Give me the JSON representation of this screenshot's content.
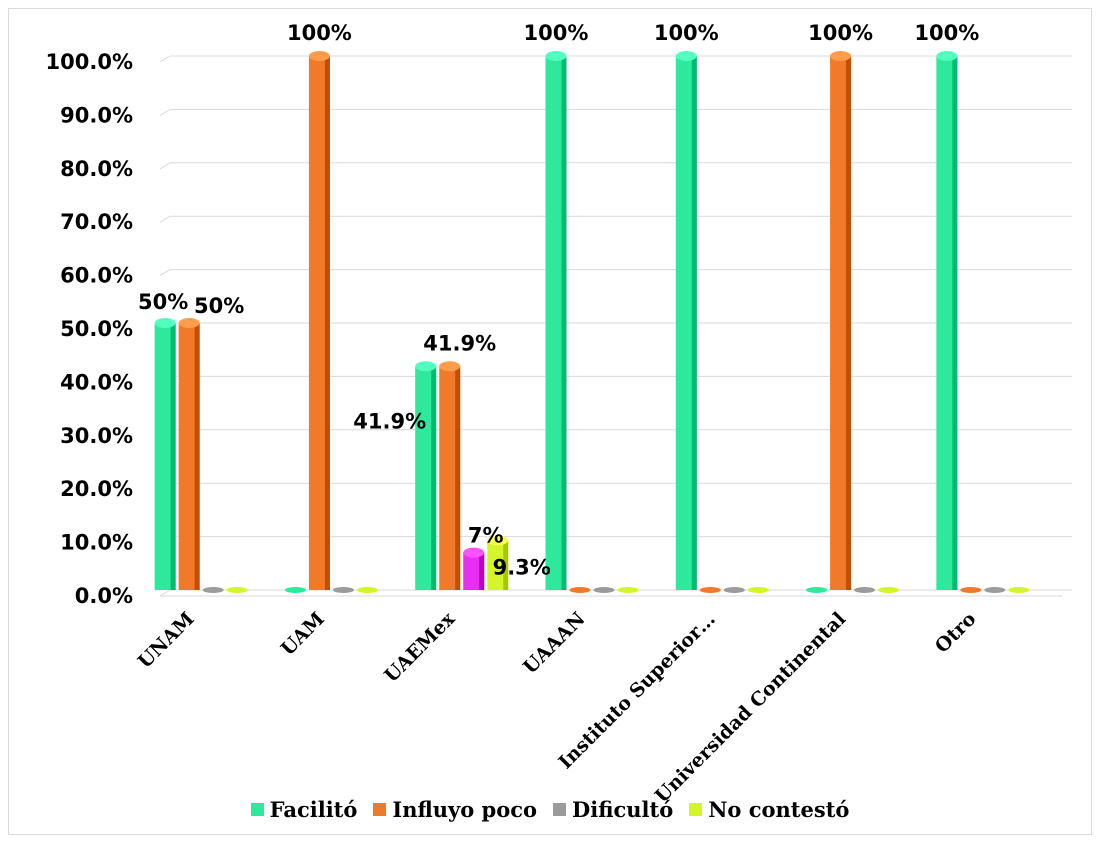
{
  "chart_data": {
    "type": "bar",
    "categories": [
      "UNAM",
      "UAM",
      "UAEMex",
      "UAAAN",
      "Instituto Superior…",
      "Universidad Continental",
      "Otro"
    ],
    "series": [
      {
        "name": "Facilitó",
        "color": "#2ee89b",
        "values": [
          50,
          0,
          41.9,
          100,
          100,
          0,
          100
        ]
      },
      {
        "name": "Influyo poco",
        "color": "#f07a2a",
        "values": [
          50,
          100,
          41.9,
          0,
          0,
          100,
          0
        ]
      },
      {
        "name": "Dificultó",
        "color": "#9b9b9b",
        "values": [
          0,
          0,
          7,
          0,
          0,
          0,
          0
        ]
      },
      {
        "name": "No contestó",
        "color": "#d4f52a",
        "values": [
          0,
          0,
          9.3,
          0,
          0,
          0,
          0
        ]
      }
    ],
    "bar_colors_override": {
      "2": {
        "2": "#e82ef0"
      }
    },
    "data_labels": [
      {
        "category": 0,
        "series": 0,
        "text": "50%"
      },
      {
        "category": 0,
        "series": 1,
        "text": "50%"
      },
      {
        "category": 1,
        "series": 1,
        "text": "100%"
      },
      {
        "category": 2,
        "series": 0,
        "text": "41.9%"
      },
      {
        "category": 2,
        "series": 1,
        "text": "41.9%"
      },
      {
        "category": 2,
        "series": 2,
        "text": "7%"
      },
      {
        "category": 2,
        "series": 3,
        "text": "9.3%"
      },
      {
        "category": 3,
        "series": 0,
        "text": "100%"
      },
      {
        "category": 4,
        "series": 0,
        "text": "100%"
      },
      {
        "category": 5,
        "series": 1,
        "text": "100%"
      },
      {
        "category": 6,
        "series": 0,
        "text": "100%"
      }
    ],
    "y_ticks": [
      "0.0%",
      "10.0%",
      "20.0%",
      "30.0%",
      "40.0%",
      "50.0%",
      "60.0%",
      "70.0%",
      "80.0%",
      "90.0%",
      "100.0%"
    ],
    "ylim": [
      0,
      100
    ],
    "grid": true,
    "legend_position": "bottom",
    "title": "",
    "xlabel": "",
    "ylabel": ""
  }
}
